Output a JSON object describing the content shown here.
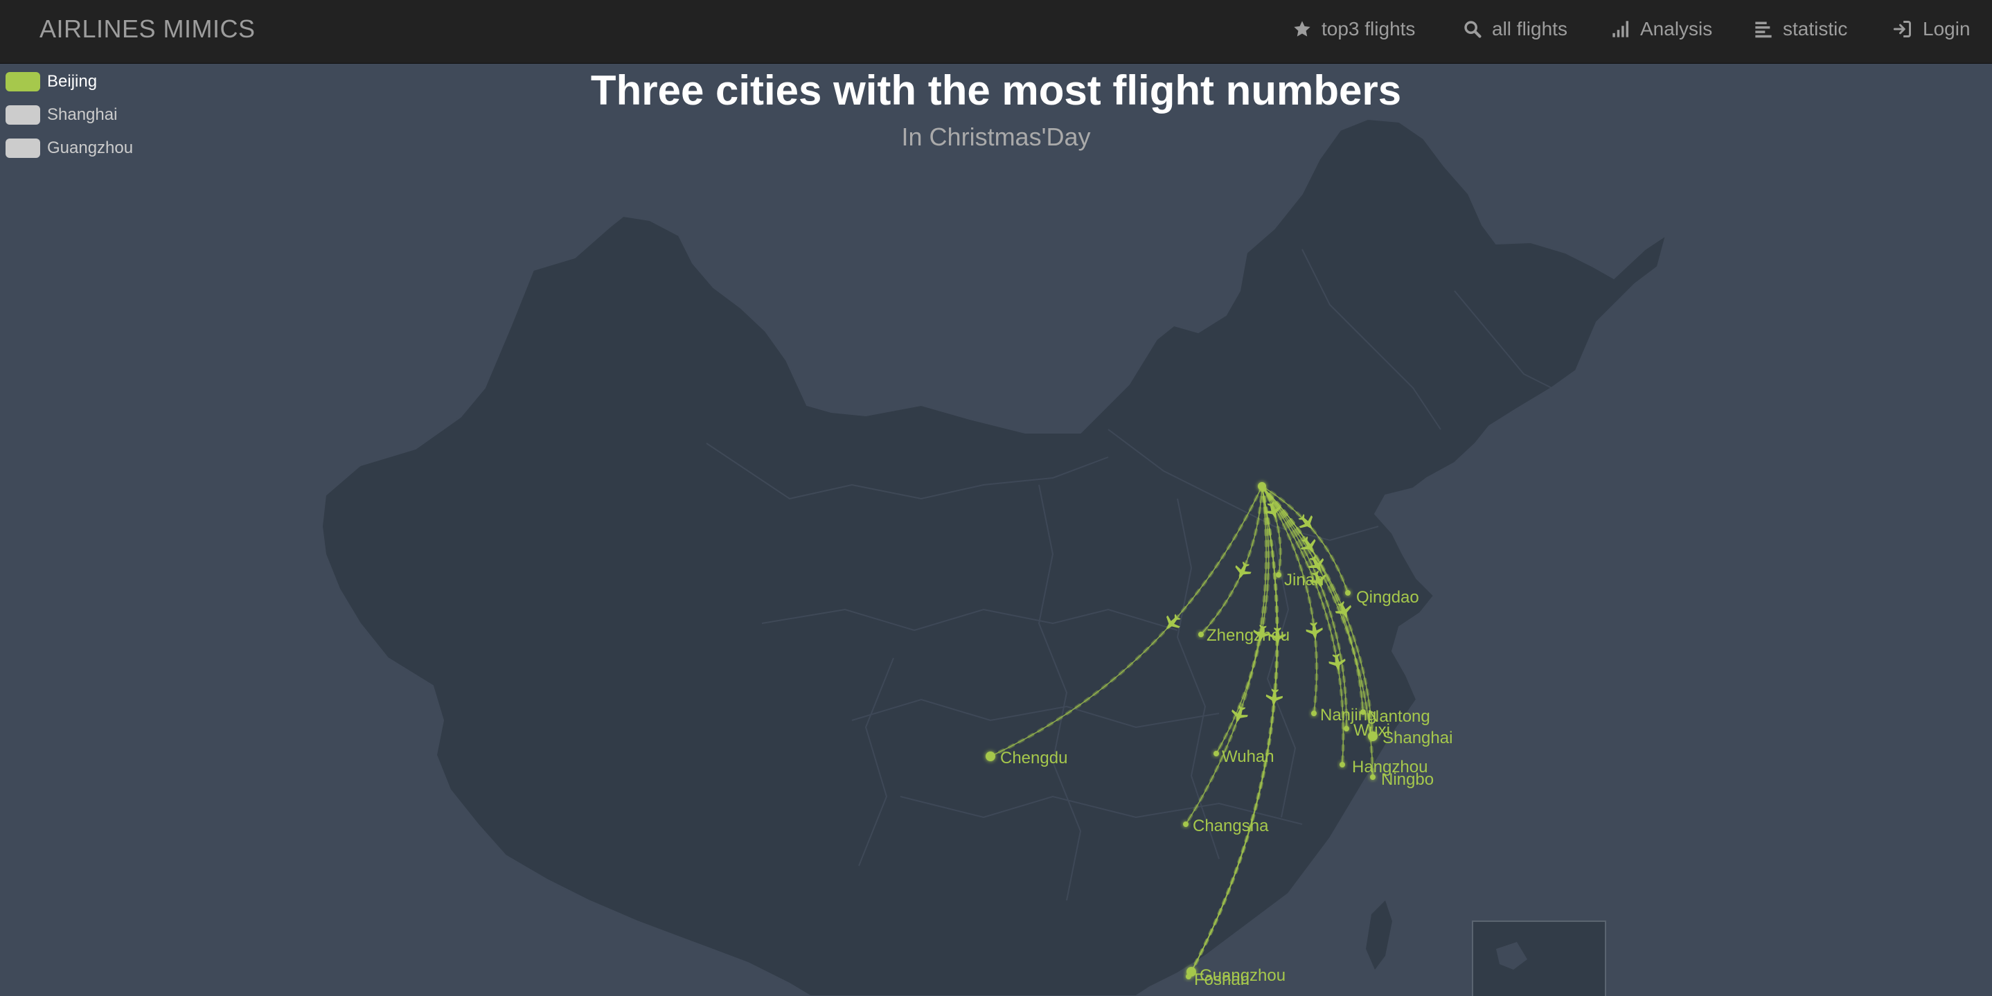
{
  "navbar": {
    "brand": "AIRLINES MIMICS",
    "items": [
      {
        "label": "top3 flights",
        "icon": "star-icon"
      },
      {
        "label": "all flights",
        "icon": "search-icon"
      },
      {
        "label": "Analysis",
        "icon": "signal-bars-icon"
      },
      {
        "label": "statistic",
        "icon": "align-left-icon"
      },
      {
        "label": "Login",
        "icon": "login-icon"
      }
    ]
  },
  "legend": [
    {
      "label": "Beijing",
      "active": true,
      "color": "#a6c84c"
    },
    {
      "label": "Shanghai",
      "active": false,
      "color": "#cccccc"
    },
    {
      "label": "Guangzhou",
      "active": false,
      "color": "#cccccc"
    }
  ],
  "title": "Three cities with the most flight numbers",
  "subtitle": "In Christmas'Day",
  "map": {
    "region": "China",
    "colors": {
      "background": "#404a59",
      "land": "#323c48",
      "border": "#404a59",
      "route": "#a6c84c",
      "inactive_legend": "#cccccc"
    },
    "origin": "Beijing",
    "destinations": [
      "Jinan",
      "Qingdao",
      "Zhengzhou",
      "Nanjing",
      "Nantong",
      "Wuxi",
      "Shanghai",
      "Hangzhou",
      "Ningbo",
      "Chengdu",
      "Wuhan",
      "Changsha",
      "Guangzhou",
      "Foshan"
    ]
  }
}
